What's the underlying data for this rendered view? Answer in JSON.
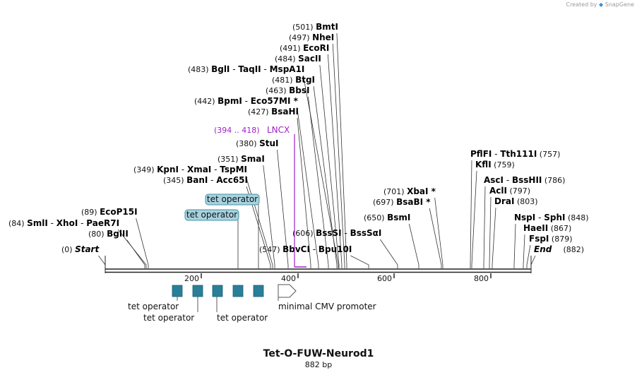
{
  "branding": {
    "created_by": "Created by",
    "app_name": "SnapGene"
  },
  "plasmid": {
    "name": "Tet-O-FUW-Neurod1",
    "length_label": "882 bp"
  },
  "scale": {
    "ticks": [
      "200",
      "400",
      "600",
      "800"
    ]
  },
  "colors": {
    "feature_fill": "#2a7f98",
    "tag_fill": "#a6d3df",
    "lncx": "#a020c8",
    "line": "#222222"
  },
  "sites": [
    {
      "id": "start",
      "pos": "(0)",
      "names": [
        "Start"
      ],
      "italic": true
    },
    {
      "id": "bglii",
      "pos": "(80)",
      "names": [
        "BglII"
      ]
    },
    {
      "id": "smli",
      "pos": "(84)",
      "names": [
        "SmlI",
        "XhoI",
        "PaeR7I"
      ]
    },
    {
      "id": "ecop15i",
      "pos": "(89)",
      "names": [
        "EcoP15I"
      ]
    },
    {
      "id": "bani",
      "pos": "(345)",
      "names": [
        "BanI",
        "Acc65I"
      ]
    },
    {
      "id": "kpni",
      "pos": "(349)",
      "names": [
        "KpnI",
        "XmaI",
        "TspMI"
      ]
    },
    {
      "id": "smai",
      "pos": "(351)",
      "names": [
        "SmaI"
      ]
    },
    {
      "id": "stui",
      "pos": "(380)",
      "names": [
        "StuI"
      ]
    },
    {
      "id": "bsahi",
      "pos": "(427)",
      "names": [
        "BsaHI"
      ]
    },
    {
      "id": "bpmi",
      "pos": "(442)",
      "names": [
        "BpmI",
        "Eco57MI *"
      ]
    },
    {
      "id": "bbsi",
      "pos": "(463)",
      "names": [
        "BbsI"
      ]
    },
    {
      "id": "btgi",
      "pos": "(481)",
      "names": [
        "BtgI"
      ]
    },
    {
      "id": "bgli",
      "pos": "(483)",
      "names": [
        "BglI",
        "TaqII",
        "MspA1I"
      ]
    },
    {
      "id": "sacii",
      "pos": "(484)",
      "names": [
        "SacII"
      ]
    },
    {
      "id": "ecori",
      "pos": "(491)",
      "names": [
        "EcoRI"
      ]
    },
    {
      "id": "nhei",
      "pos": "(497)",
      "names": [
        "NheI"
      ]
    },
    {
      "id": "bmti",
      "pos": "(501)",
      "names": [
        "BmtI"
      ]
    },
    {
      "id": "bbvci",
      "pos": "(547)",
      "names": [
        "BbvCI",
        "Bpu10I"
      ]
    },
    {
      "id": "bsssi",
      "pos": "(606)",
      "names": [
        "BssSI",
        "BssSαI"
      ]
    },
    {
      "id": "bsmi",
      "pos": "(650)",
      "names": [
        "BsmI"
      ]
    },
    {
      "id": "bsabi",
      "pos": "(697)",
      "names": [
        "BsaBI *"
      ]
    },
    {
      "id": "xbai",
      "pos": "(701)",
      "names": [
        "XbaI *"
      ]
    },
    {
      "id": "pflfi",
      "pos": "(757)",
      "names": [
        "PflFI",
        "Tth111I"
      ]
    },
    {
      "id": "kfli",
      "pos": "(759)",
      "names": [
        "KflI"
      ]
    },
    {
      "id": "asci",
      "pos": "(786)",
      "names": [
        "AscI",
        "BssHII"
      ]
    },
    {
      "id": "acli",
      "pos": "(797)",
      "names": [
        "AclI"
      ]
    },
    {
      "id": "drai",
      "pos": "(803)",
      "names": [
        "DraI"
      ]
    },
    {
      "id": "nspi",
      "pos": "(848)",
      "names": [
        "NspI",
        "SphI"
      ]
    },
    {
      "id": "haeii",
      "pos": "(867)",
      "names": [
        "HaeII"
      ]
    },
    {
      "id": "fspi",
      "pos": "(879)",
      "names": [
        "FspI"
      ]
    },
    {
      "id": "end",
      "pos": "(882)",
      "names": [
        "End"
      ],
      "italic": true
    }
  ],
  "primer": {
    "range": "(394 .. 418)",
    "name": "LNCX"
  },
  "tags": [
    "tet operator",
    "tet operator"
  ],
  "features": {
    "tet_labels": [
      "tet operator",
      "tet operator",
      "tet operator"
    ],
    "promoter": "minimal CMV promoter"
  }
}
